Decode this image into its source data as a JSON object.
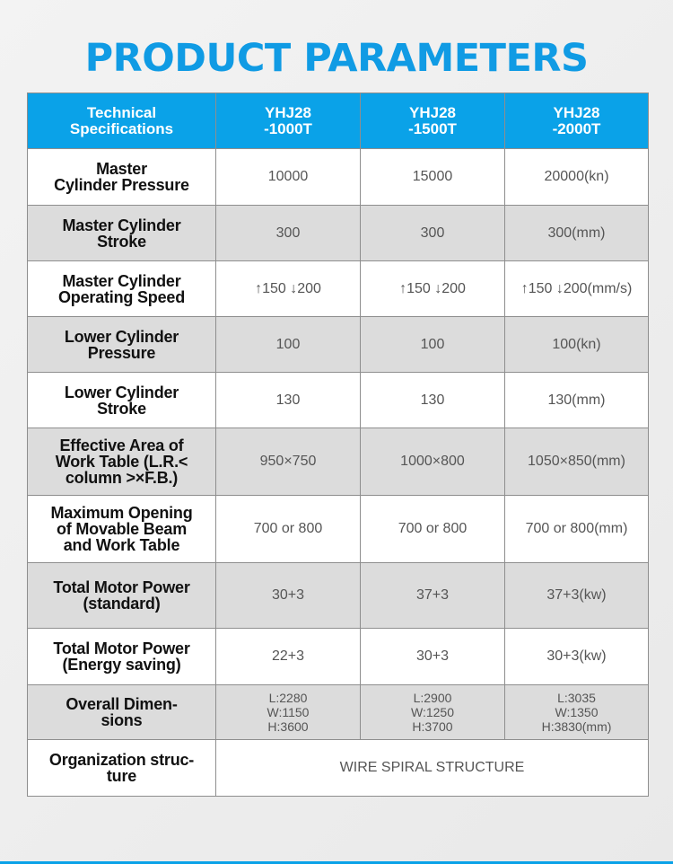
{
  "page": {
    "title": "PRODUCT PARAMETERS"
  },
  "table": {
    "header": {
      "label": [
        "Technical",
        "Specifications"
      ],
      "models": [
        [
          "YHJ28",
          "-1000T"
        ],
        [
          "YHJ28",
          "-1500T"
        ],
        [
          "YHJ28",
          "-2000T"
        ]
      ]
    },
    "rows": [
      {
        "label": [
          "Master",
          "Cylinder Pressure"
        ],
        "values": [
          "10000",
          "15000",
          "20000(kn)"
        ]
      },
      {
        "label": [
          "Master Cylinder",
          "Stroke"
        ],
        "values": [
          "300",
          "300",
          "300(mm)"
        ]
      },
      {
        "label": [
          "Master Cylinder",
          "Operating Speed"
        ],
        "values": [
          "↑150 ↓200",
          "↑150 ↓200",
          "↑150 ↓200(mm/s)"
        ]
      },
      {
        "label": [
          "Lower Cylinder",
          "Pressure"
        ],
        "values": [
          "100",
          "100",
          "100(kn)"
        ]
      },
      {
        "label": [
          "Lower Cylinder",
          "Stroke"
        ],
        "values": [
          "130",
          "130",
          "130(mm)"
        ]
      },
      {
        "label": [
          "Effective Area of",
          "Work Table (L.R.<",
          "column >×F.B.)"
        ],
        "values": [
          "950×750",
          "1000×800",
          "1050×850(mm)"
        ]
      },
      {
        "label": [
          "Maximum Opening",
          "of Movable Beam",
          "and Work Table"
        ],
        "values": [
          "700 or 800",
          "700 or 800",
          "700 or 800(mm)"
        ]
      },
      {
        "label": [
          "Total Motor Power",
          "(standard)"
        ],
        "values": [
          "30+3",
          "37+3",
          "37+3(kw)"
        ]
      },
      {
        "label": [
          "Total Motor Power",
          "(Energy saving)"
        ],
        "values": [
          "22+3",
          "30+3",
          "30+3(kw)"
        ]
      },
      {
        "label": [
          "Overall  Dimen-",
          "sions"
        ],
        "values": [
          [
            "L:2280",
            "W:1150",
            "H:3600"
          ],
          [
            "L:2900",
            "W:1250",
            "H:3700"
          ],
          [
            "L:3035",
            "W:1350",
            "H:3830(mm)"
          ]
        ]
      },
      {
        "label": [
          "Organization struc-",
          "ture"
        ],
        "merged_value": "WIRE SPIRAL STRUCTURE"
      }
    ]
  }
}
